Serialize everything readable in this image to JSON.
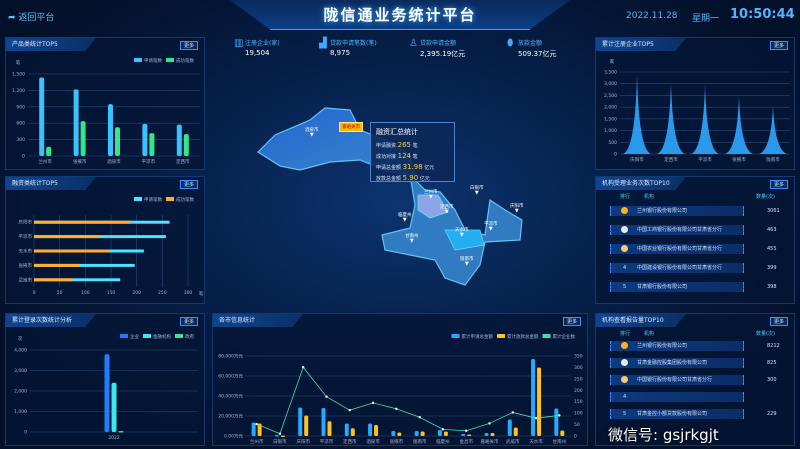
{
  "header": {
    "title": "陇信通业务统计平台",
    "back": "返回平台",
    "date": "2022.11.28",
    "weekday": "星期一",
    "time": "10:50:44"
  },
  "stats": [
    {
      "label": "注册企业(家)",
      "value": "19,504",
      "icon": "building-icon"
    },
    {
      "label": "贷款申请笔数(笔)",
      "value": "8,975",
      "icon": "bar-chart-icon"
    },
    {
      "label": "贷款申请金额",
      "value": "2,395.19亿元",
      "icon": "user-icon"
    },
    {
      "label": "放款金额",
      "value": "509.37亿元",
      "icon": "coin-icon"
    }
  ],
  "more_label": "更多",
  "panels": {
    "product": {
      "title": "产品类统计TOP5"
    },
    "finance": {
      "title": "融资类统计TOP5"
    },
    "login": {
      "title": "累计登录次数统计分析"
    },
    "register": {
      "title": "累计注册企业TOP5"
    },
    "accept": {
      "title": "机构受理业务次数TOP10",
      "col_rank": "排行",
      "col_org": "机构",
      "col_count": "数量(次)",
      "rows": [
        {
          "rank": "1",
          "org": "兰州银行股份有限公司",
          "count": "3061"
        },
        {
          "rank": "2",
          "org": "中国工商银行股份有限公司甘肃省分行",
          "count": "463"
        },
        {
          "rank": "3",
          "org": "中国农业银行股份有限公司甘肃省分行",
          "count": "455"
        },
        {
          "rank": "4",
          "org": "中国建设银行股份有限公司甘肃省分行",
          "count": "399"
        },
        {
          "rank": "5",
          "org": "甘肃银行股份有限公司",
          "count": "398"
        }
      ]
    },
    "report": {
      "title": "机构查看报告量TOP10",
      "col_rank": "排行",
      "col_org": "机构",
      "col_count": "数量(次)",
      "rows": [
        {
          "rank": "1",
          "org": "兰州银行股份有限公司",
          "count": "8212"
        },
        {
          "rank": "2",
          "org": "甘肃金融控股集团股份有限公司",
          "count": "825"
        },
        {
          "rank": "3",
          "org": "中国银行股份有限公司甘肃省分行",
          "count": "300"
        },
        {
          "rank": "4",
          "org": "",
          "count": ""
        },
        {
          "rank": "5",
          "org": "甘肃金控小额贷款股份有限公司",
          "count": "229"
        }
      ]
    },
    "city": {
      "title": "各市信息统计"
    }
  },
  "map": {
    "popup": {
      "title": "融资汇总统计",
      "rows": [
        {
          "label": "申请融资",
          "value": "265",
          "unit": "笔"
        },
        {
          "label": "成功对接",
          "value": "124",
          "unit": "笔"
        },
        {
          "label": "申请总金额",
          "value": "31.98",
          "unit": "亿元"
        },
        {
          "label": "放款总金额",
          "value": "5.90",
          "unit": "亿元"
        }
      ]
    },
    "highlight": "嘉峪关市",
    "cities": [
      "酒泉市",
      "白银市",
      "兰州市",
      "临夏州",
      "定西市",
      "天水市",
      "平凉市",
      "庆阳市",
      "甘南州",
      "陇南市"
    ]
  },
  "watermark": "微信号: gsjrkgjt",
  "chart_data": [
    {
      "id": "product",
      "type": "bar",
      "ylabel": "笔",
      "categories": [
        "兰州市",
        "张掖市",
        "酒泉市",
        "平凉市",
        "定西市"
      ],
      "ylim": [
        0,
        1500
      ],
      "yticks": [
        0,
        300,
        600,
        900,
        1200,
        1500
      ],
      "legend": "top-right",
      "series": [
        {
          "name": "申请笔数",
          "color": "#39c2ff",
          "values": [
            1437,
            1219,
            950,
            587,
            575
          ]
        },
        {
          "name": "成功笔数",
          "color": "#2ee88a",
          "values": [
            169,
            637,
            525,
            419,
            400
          ]
        }
      ]
    },
    {
      "id": "finance",
      "type": "bar",
      "orientation": "horizontal",
      "xlabel": "笔",
      "categories": [
        "庆阳市",
        "平凉市",
        "天水市",
        "张掖市",
        "武威市"
      ],
      "xlim": [
        0,
        300
      ],
      "xticks": [
        0,
        50,
        100,
        150,
        200,
        250,
        300
      ],
      "legend": "top-right",
      "series": [
        {
          "name": "申请笔数",
          "color": "#4fe3ff",
          "values": [
            264,
            257,
            214,
            196,
            168
          ]
        },
        {
          "name": "成功笔数",
          "color": "#ffad33",
          "values": [
            188,
            129,
            147,
            89,
            75
          ]
        }
      ]
    },
    {
      "id": "login",
      "type": "bar",
      "ylabel": "次",
      "categories": [
        "2022"
      ],
      "ylim": [
        0,
        4000
      ],
      "yticks": [
        0,
        1000,
        2000,
        3000,
        4000
      ],
      "legend": "top-right",
      "series": [
        {
          "name": "企业",
          "color": "#1f7dff",
          "values": [
            3800
          ]
        },
        {
          "name": "金融机构",
          "color": "#3ee6f0",
          "values": [
            2400
          ]
        },
        {
          "name": "政府",
          "color": "#2ee88a",
          "values": [
            50
          ]
        }
      ]
    },
    {
      "id": "register",
      "type": "area-spike",
      "ylabel": "家",
      "categories": [
        "庆阳市",
        "定西市",
        "平凉市",
        "张掖市",
        "陇南市"
      ],
      "ylim": [
        0,
        3500
      ],
      "yticks": [
        0,
        500,
        1000,
        1500,
        2000,
        2500,
        3000,
        3500
      ],
      "series": [
        {
          "color": "#2fa6ff",
          "values": [
            3350,
            3000,
            2950,
            2450,
            2050
          ]
        }
      ]
    },
    {
      "id": "city",
      "type": "bar+line",
      "categories": [
        "兰州市",
        "白银市",
        "庆阳市",
        "平凉市",
        "定西市",
        "酒泉市",
        "张掖市",
        "陇南市",
        "临夏州",
        "金昌市",
        "嘉峪关市",
        "武威市",
        "天水市",
        "甘南州"
      ],
      "ylim": [
        0,
        80000
      ],
      "yticks": [
        "0.00万元",
        "20,000万元",
        "40,000万元",
        "60,000万元",
        "80,000万元"
      ],
      "y2lim": [
        0,
        350
      ],
      "y2ticks": [
        0,
        50,
        100,
        150,
        200,
        250,
        300,
        350
      ],
      "legend": "top-right",
      "series": [
        {
          "name": "累计申请总金额",
          "color": "#29a8ff",
          "values": [
            13500,
            1000,
            28500,
            28000,
            12500,
            12500,
            5000,
            5000,
            6000,
            2000,
            3000,
            16500,
            77000,
            27500
          ]
        },
        {
          "name": "累计放款总金额",
          "color": "#ffc21a",
          "values": [
            12500,
            500,
            20500,
            14800,
            7800,
            11000,
            3500,
            4500,
            4500,
            1500,
            3000,
            8500,
            68500,
            5500
          ]
        },
        {
          "name": "累计企业数",
          "color": "#3fe0b0",
          "axis": "right",
          "type": "line",
          "values": [
            52,
            10,
            301,
            172,
            113,
            145,
            119,
            82,
            29,
            23,
            55,
            103,
            78,
            90
          ]
        }
      ]
    }
  ]
}
